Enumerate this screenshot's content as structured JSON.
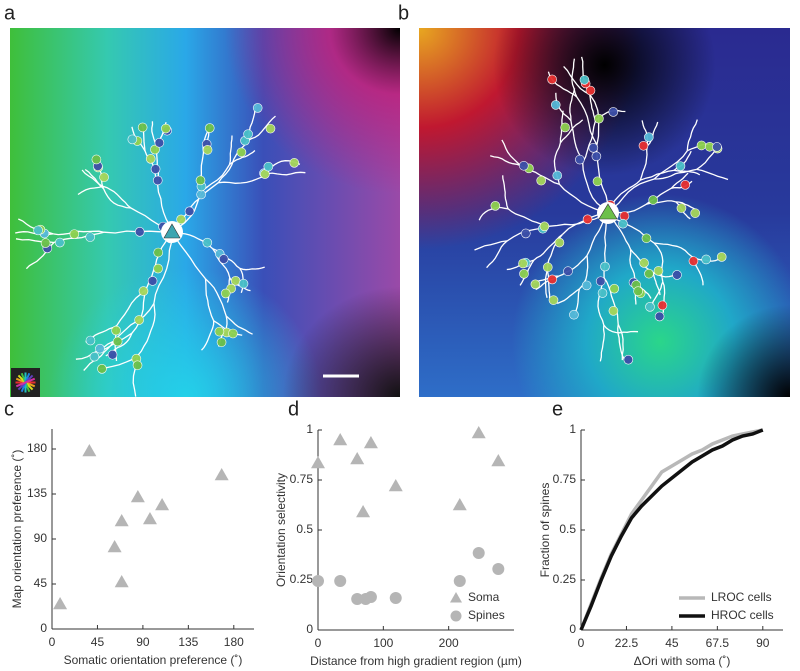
{
  "panel_labels": [
    "a",
    "b"
  ],
  "chart_data": [
    {
      "panel": "c",
      "type": "scatter",
      "xlabel": "Somatic orientation preference (˚)",
      "ylabel": "Map orientation preference (˚)",
      "xlim": [
        0,
        200
      ],
      "xticks": [
        0,
        45,
        90,
        135,
        180
      ],
      "ylim": [
        0,
        200
      ],
      "yticks": [
        0,
        45,
        90,
        135,
        180
      ],
      "series": [
        {
          "color": "#b5b5b5",
          "marker": "triangle",
          "x": [
            8,
            37,
            62,
            69,
            69,
            85,
            97,
            109,
            168
          ],
          "values": [
            25,
            178,
            82,
            108,
            47,
            132,
            110,
            124,
            154
          ]
        }
      ]
    },
    {
      "panel": "d",
      "type": "scatter",
      "xlabel": "Distance from high gradient region (µm)",
      "ylabel": "Orientation selectivity",
      "xlim": [
        0,
        300
      ],
      "xticks": [
        0,
        100,
        200
      ],
      "ylim": [
        0,
        1
      ],
      "yticks": [
        0,
        0.25,
        0.5,
        0.75,
        1
      ],
      "legend": "lower right",
      "series": [
        {
          "name": "Soma",
          "color": "#b5b5b5",
          "marker": "triangle",
          "x": [
            0,
            34,
            60,
            69,
            81,
            119,
            217,
            246,
            276
          ],
          "values": [
            0.835,
            0.95,
            0.855,
            0.59,
            0.935,
            0.72,
            0.625,
            0.985,
            0.845
          ]
        },
        {
          "name": "Spines",
          "color": "#b5b5b5",
          "marker": "circle",
          "x": [
            0,
            34,
            60,
            73,
            81,
            119,
            217,
            246,
            276
          ],
          "values": [
            0.245,
            0.245,
            0.155,
            0.155,
            0.165,
            0.16,
            0.245,
            0.385,
            0.305
          ]
        }
      ]
    },
    {
      "panel": "e",
      "type": "line",
      "xlabel": "ΔOri with soma (˚)",
      "ylabel": "Fraction of spines",
      "xlim": [
        0,
        100
      ],
      "xticks": [
        0,
        22.5,
        45,
        67.5,
        90
      ],
      "ylim": [
        0,
        1
      ],
      "yticks": [
        0,
        0.25,
        0.5,
        0.75,
        1
      ],
      "legend": "lower right",
      "x": [
        0,
        5,
        10,
        15,
        20,
        25,
        30,
        35,
        40,
        45,
        50,
        55,
        60,
        65,
        70,
        75,
        80,
        85,
        90
      ],
      "series": [
        {
          "name": "LROC cells",
          "color": "#b8b8b8",
          "width": 3.5,
          "values": [
            0,
            0.13,
            0.26,
            0.38,
            0.48,
            0.58,
            0.65,
            0.72,
            0.79,
            0.82,
            0.85,
            0.88,
            0.9,
            0.93,
            0.95,
            0.97,
            0.98,
            0.99,
            1
          ]
        },
        {
          "name": "HROC cells",
          "color": "#111111",
          "width": 3.5,
          "values": [
            0,
            0.12,
            0.25,
            0.37,
            0.47,
            0.56,
            0.62,
            0.67,
            0.72,
            0.76,
            0.8,
            0.84,
            0.87,
            0.9,
            0.92,
            0.95,
            0.97,
            0.98,
            1
          ]
        }
      ]
    }
  ]
}
